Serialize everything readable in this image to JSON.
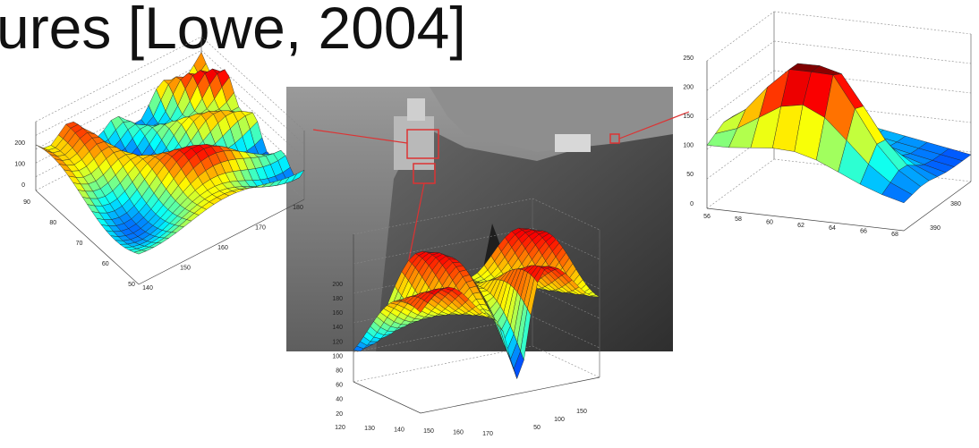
{
  "slide": {
    "title": "ures [Lowe, 2004]",
    "plots": [
      {
        "z_ticks": [
          0,
          100,
          200
        ],
        "x_ticks": [
          140,
          150,
          160,
          170,
          180
        ],
        "y_ticks": [
          50,
          60,
          70,
          80,
          90
        ]
      },
      {
        "z_ticks": [
          0,
          50,
          100,
          150,
          200,
          250
        ],
        "x_ticks": [
          56,
          58,
          60,
          62,
          64,
          66,
          68
        ],
        "y_ticks": [
          380,
          390
        ]
      },
      {
        "z_ticks": [
          20,
          40,
          60,
          80,
          100,
          120,
          140,
          160,
          180,
          200
        ],
        "x_ticks": [
          120,
          130,
          140,
          150,
          160,
          170
        ],
        "y_ticks": [
          50,
          100,
          150
        ]
      }
    ]
  }
}
